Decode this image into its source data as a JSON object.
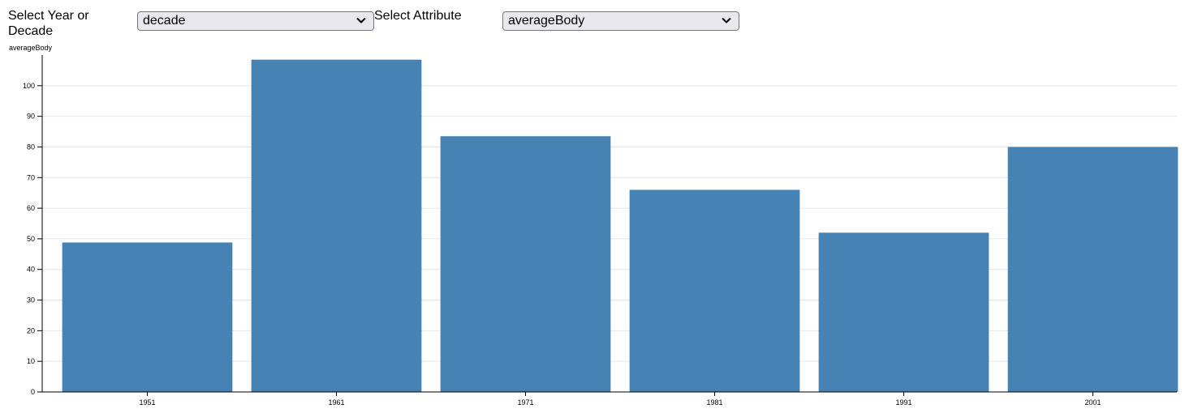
{
  "controls": {
    "year_label": "Select Year or Decade",
    "year_value": "decade",
    "attr_label": "Select Attribute",
    "attr_value": "averageBody"
  },
  "colors": {
    "bar": "#4682b4",
    "grid": "#e6e6e6",
    "axis": "#000000"
  },
  "chart_data": {
    "type": "bar",
    "ylabel": "averageBody",
    "categories": [
      "1951",
      "1961",
      "1971",
      "1981",
      "1991",
      "2001"
    ],
    "values": [
      48.8,
      108.5,
      83.5,
      66.0,
      52.0,
      80.0
    ],
    "ylim": [
      0,
      110
    ],
    "yticks": [
      0,
      10,
      20,
      30,
      40,
      50,
      60,
      70,
      80,
      90,
      100
    ],
    "grid": true,
    "legend": "none"
  }
}
